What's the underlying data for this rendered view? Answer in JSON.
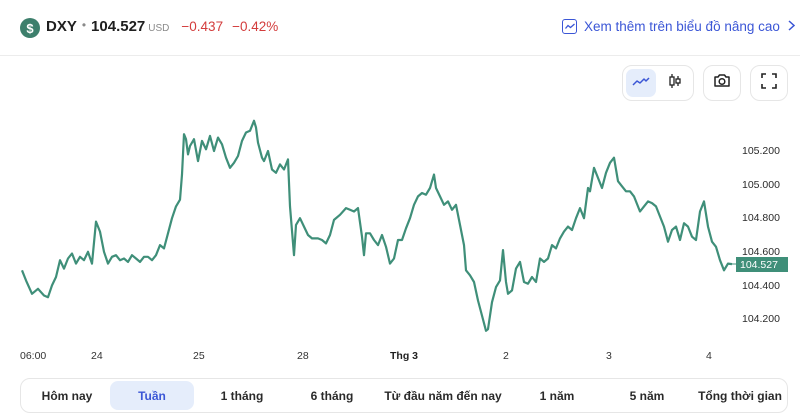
{
  "header": {
    "icon": "dollar-icon",
    "symbol": "DXY",
    "separator": "•",
    "price": "104.527",
    "currency": "USD",
    "change_abs": "−0.437",
    "change_pct": "−0.42%",
    "advanced_link": "Xem thêm trên biểu đồ nâng cao",
    "colors": {
      "negative": "#d33c3c",
      "link": "#3b56d6",
      "line": "#3f8f79"
    }
  },
  "toolbar": {
    "buttons": [
      {
        "name": "line-chart",
        "icon": "line-chart-icon",
        "active": true
      },
      {
        "name": "candlestick-chart",
        "icon": "candlestick-icon",
        "active": false
      },
      {
        "name": "screenshot",
        "icon": "camera-icon",
        "active": false
      },
      {
        "name": "fullscreen",
        "icon": "fullscreen-icon",
        "active": false
      }
    ]
  },
  "last_price_tag": "104.527",
  "range_tabs": [
    {
      "label": "Hôm nay",
      "active": false
    },
    {
      "label": "Tuần",
      "active": true
    },
    {
      "label": "1 tháng",
      "active": false
    },
    {
      "label": "6 tháng",
      "active": false
    },
    {
      "label": "Từ đầu năm đến nay",
      "active": false
    },
    {
      "label": "1 năm",
      "active": false
    },
    {
      "label": "5 năm",
      "active": false
    },
    {
      "label": "Tổng thời gian",
      "active": false
    }
  ],
  "chart_data": {
    "type": "line",
    "title": "DXY",
    "xlabel": "",
    "ylabel": "",
    "x_ticks": [
      "06:00",
      "24",
      "25",
      "28",
      "Thg 3",
      "2",
      "3",
      "4"
    ],
    "y_ticks": [
      "105.200",
      "105.000",
      "104.800",
      "104.600",
      "104.400",
      "104.200"
    ],
    "ylim": [
      104.1,
      105.35
    ],
    "grid": false,
    "legend": "none",
    "last_value": 104.527,
    "series": [
      {
        "name": "DXY",
        "color": "#3f8f79",
        "points": [
          [
            22,
            104.49
          ],
          [
            26,
            104.43
          ],
          [
            32,
            104.35
          ],
          [
            38,
            104.38
          ],
          [
            44,
            104.34
          ],
          [
            48,
            104.33
          ],
          [
            52,
            104.4
          ],
          [
            56,
            104.45
          ],
          [
            60,
            104.55
          ],
          [
            64,
            104.5
          ],
          [
            68,
            104.56
          ],
          [
            72,
            104.59
          ],
          [
            76,
            104.53
          ],
          [
            80,
            104.57
          ],
          [
            84,
            104.55
          ],
          [
            88,
            104.6
          ],
          [
            92,
            104.53
          ],
          [
            96,
            104.78
          ],
          [
            100,
            104.72
          ],
          [
            104,
            104.6
          ],
          [
            108,
            104.53
          ],
          [
            112,
            104.57
          ],
          [
            116,
            104.58
          ],
          [
            120,
            104.55
          ],
          [
            124,
            104.56
          ],
          [
            128,
            104.54
          ],
          [
            132,
            104.58
          ],
          [
            136,
            104.56
          ],
          [
            140,
            104.54
          ],
          [
            144,
            104.57
          ],
          [
            148,
            104.57
          ],
          [
            152,
            104.55
          ],
          [
            156,
            104.58
          ],
          [
            160,
            104.64
          ],
          [
            164,
            104.62
          ],
          [
            168,
            104.71
          ],
          [
            172,
            104.8
          ],
          [
            176,
            104.87
          ],
          [
            180,
            104.91
          ],
          [
            182,
            105.06
          ],
          [
            184,
            105.3
          ],
          [
            186,
            105.27
          ],
          [
            188,
            105.18
          ],
          [
            190,
            105.23
          ],
          [
            194,
            105.27
          ],
          [
            198,
            105.14
          ],
          [
            202,
            105.26
          ],
          [
            206,
            105.21
          ],
          [
            210,
            105.29
          ],
          [
            214,
            105.2
          ],
          [
            218,
            105.28
          ],
          [
            222,
            105.24
          ],
          [
            226,
            105.16
          ],
          [
            230,
            105.1
          ],
          [
            234,
            105.13
          ],
          [
            238,
            105.17
          ],
          [
            242,
            105.26
          ],
          [
            246,
            105.31
          ],
          [
            250,
            105.32
          ],
          [
            254,
            105.38
          ],
          [
            256,
            105.34
          ],
          [
            258,
            105.25
          ],
          [
            262,
            105.16
          ],
          [
            264,
            105.14
          ],
          [
            268,
            105.2
          ],
          [
            272,
            105.09
          ],
          [
            276,
            105.07
          ],
          [
            280,
            105.12
          ],
          [
            284,
            105.09
          ],
          [
            288,
            105.15
          ],
          [
            290,
            104.87
          ],
          [
            294,
            104.58
          ],
          [
            296,
            104.76
          ],
          [
            300,
            104.8
          ],
          [
            304,
            104.75
          ],
          [
            308,
            104.7
          ],
          [
            312,
            104.68
          ],
          [
            318,
            104.68
          ],
          [
            322,
            104.67
          ],
          [
            326,
            104.65
          ],
          [
            330,
            104.7
          ],
          [
            334,
            104.79
          ],
          [
            340,
            104.82
          ],
          [
            346,
            104.86
          ],
          [
            350,
            104.85
          ],
          [
            354,
            104.84
          ],
          [
            358,
            104.86
          ],
          [
            362,
            104.69
          ],
          [
            364,
            104.58
          ],
          [
            366,
            104.71
          ],
          [
            370,
            104.71
          ],
          [
            374,
            104.67
          ],
          [
            378,
            104.64
          ],
          [
            382,
            104.7
          ],
          [
            386,
            104.63
          ],
          [
            390,
            104.53
          ],
          [
            394,
            104.56
          ],
          [
            398,
            104.67
          ],
          [
            402,
            104.67
          ],
          [
            406,
            104.74
          ],
          [
            410,
            104.8
          ],
          [
            414,
            104.88
          ],
          [
            418,
            104.93
          ],
          [
            422,
            104.95
          ],
          [
            426,
            104.94
          ],
          [
            430,
            104.98
          ],
          [
            434,
            105.06
          ],
          [
            436,
            104.98
          ],
          [
            440,
            104.93
          ],
          [
            444,
            104.88
          ],
          [
            448,
            104.9
          ],
          [
            452,
            104.85
          ],
          [
            456,
            104.88
          ],
          [
            460,
            104.76
          ],
          [
            464,
            104.64
          ],
          [
            466,
            104.49
          ],
          [
            470,
            104.46
          ],
          [
            474,
            104.42
          ],
          [
            478,
            104.31
          ],
          [
            482,
            104.22
          ],
          [
            486,
            104.13
          ],
          [
            488,
            104.14
          ],
          [
            492,
            104.3
          ],
          [
            496,
            104.39
          ],
          [
            500,
            104.43
          ],
          [
            503,
            104.61
          ],
          [
            506,
            104.42
          ],
          [
            508,
            104.35
          ],
          [
            512,
            104.37
          ],
          [
            516,
            104.5
          ],
          [
            520,
            104.54
          ],
          [
            524,
            104.42
          ],
          [
            528,
            104.41
          ],
          [
            532,
            104.45
          ],
          [
            536,
            104.42
          ],
          [
            540,
            104.56
          ],
          [
            544,
            104.54
          ],
          [
            548,
            104.56
          ],
          [
            552,
            104.64
          ],
          [
            556,
            104.62
          ],
          [
            560,
            104.68
          ],
          [
            564,
            104.72
          ],
          [
            568,
            104.75
          ],
          [
            572,
            104.73
          ],
          [
            576,
            104.8
          ],
          [
            580,
            104.86
          ],
          [
            584,
            104.8
          ],
          [
            588,
            104.98
          ],
          [
            590,
            104.96
          ],
          [
            594,
            105.1
          ],
          [
            598,
            105.04
          ],
          [
            602,
            104.98
          ],
          [
            606,
            105.07
          ],
          [
            610,
            105.13
          ],
          [
            614,
            105.16
          ],
          [
            618,
            105.02
          ],
          [
            622,
            104.99
          ],
          [
            626,
            104.96
          ],
          [
            630,
            104.96
          ],
          [
            634,
            104.93
          ],
          [
            640,
            104.84
          ],
          [
            644,
            104.87
          ],
          [
            648,
            104.9
          ],
          [
            652,
            104.89
          ],
          [
            656,
            104.87
          ],
          [
            660,
            104.81
          ],
          [
            664,
            104.75
          ],
          [
            668,
            104.66
          ],
          [
            672,
            104.73
          ],
          [
            676,
            104.75
          ],
          [
            680,
            104.67
          ],
          [
            684,
            104.77
          ],
          [
            688,
            104.75
          ],
          [
            692,
            104.69
          ],
          [
            696,
            104.67
          ],
          [
            700,
            104.84
          ],
          [
            704,
            104.9
          ],
          [
            708,
            104.75
          ],
          [
            712,
            104.66
          ],
          [
            716,
            104.63
          ],
          [
            720,
            104.55
          ],
          [
            724,
            104.49
          ],
          [
            728,
            104.53
          ],
          [
            732,
            104.527
          ]
        ]
      }
    ]
  }
}
